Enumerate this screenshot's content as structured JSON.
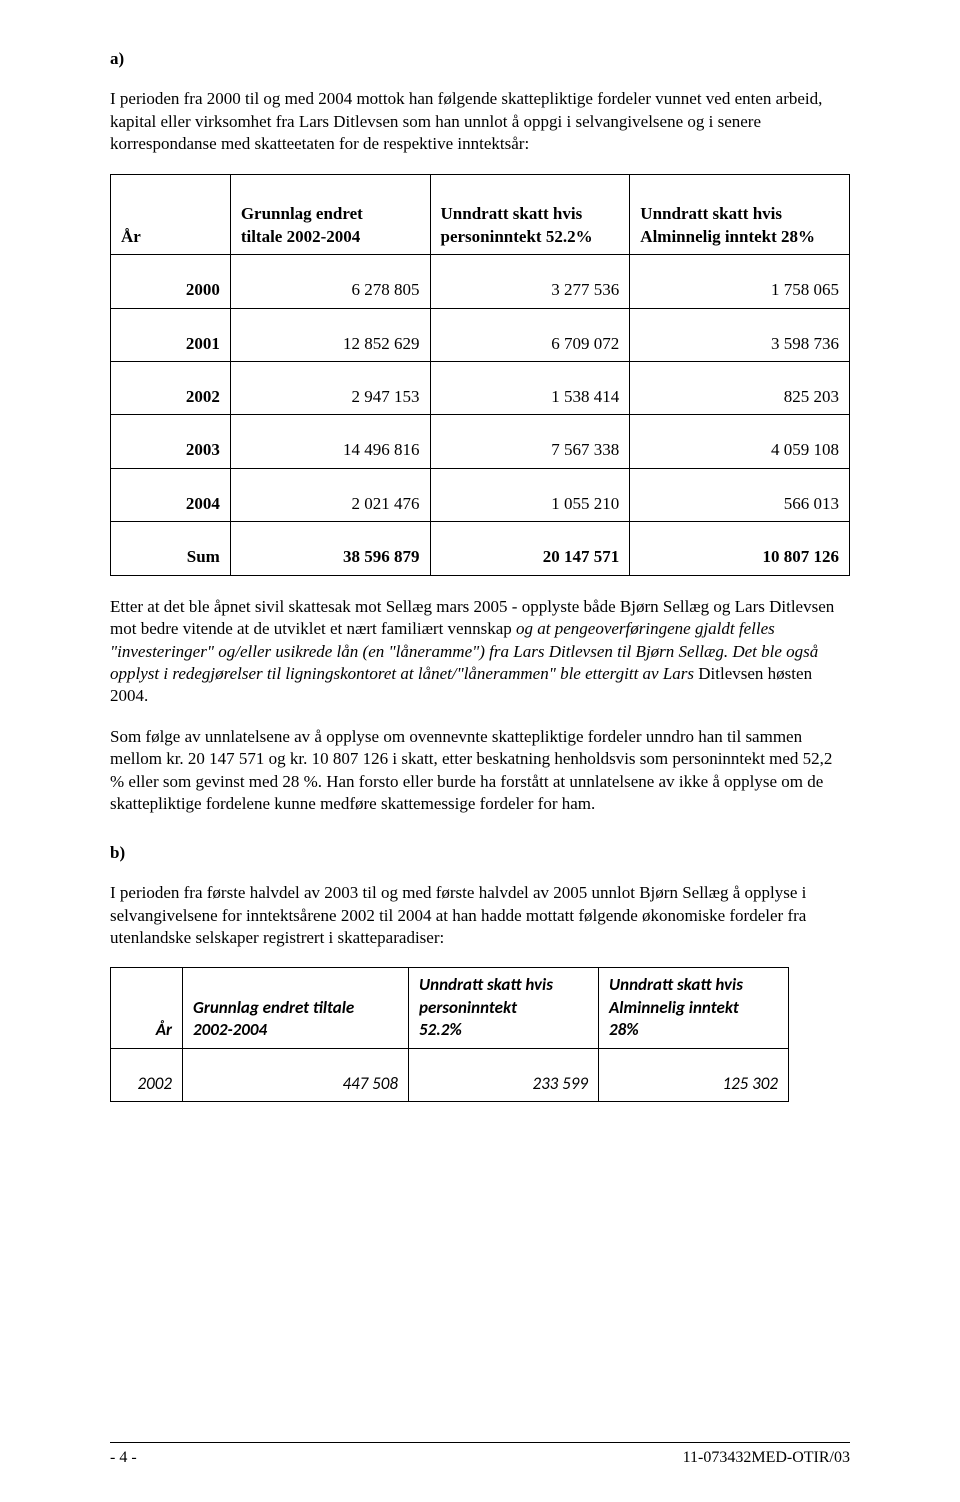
{
  "section_a": {
    "label": "a)",
    "para1": "I perioden fra 2000 til og med 2004 mottok han følgende skattepliktige fordeler vunnet ved enten arbeid, kapital eller virksomhet fra Lars Ditlevsen som han unnlot å oppgi i selvangivelsene og i senere korrespondanse med skatteetaten for de respektive inntektsår:"
  },
  "table1": {
    "headers": {
      "c1": "År",
      "c2_l1": "Grunnlag endret",
      "c2_l2": "tiltale 2002-2004",
      "c3_l1": "Unndratt skatt hvis",
      "c3_l2": "personinntekt 52.2%",
      "c4_l1": "Unndratt skatt hvis",
      "c4_l2": "Alminnelig inntekt 28%"
    },
    "rows": [
      {
        "year": "2000",
        "c2": "6 278 805",
        "c3": "3 277 536",
        "c4": "1 758 065"
      },
      {
        "year": "2001",
        "c2": "12 852 629",
        "c3": "6 709 072",
        "c4": "3 598 736"
      },
      {
        "year": "2002",
        "c2": "2 947 153",
        "c3": "1 538 414",
        "c4": "825 203"
      },
      {
        "year": "2003",
        "c2": "14 496 816",
        "c3": "7 567 338",
        "c4": "4 059 108"
      },
      {
        "year": "2004",
        "c2": "2 021 476",
        "c3": "1 055 210",
        "c4": "566 013"
      }
    ],
    "sum_row": {
      "label": "Sum",
      "c2": "38 596 879",
      "c3": "20 147 571",
      "c4": "10 807 126"
    },
    "col_widths": {
      "c1": 120,
      "c2": 200,
      "c3": 200,
      "c4": 220
    }
  },
  "body": {
    "p2_part1": "Etter at det ble åpnet sivil skattesak mot Sellæg mars 2005 - opplyste både Bjørn Sellæg og Lars Ditlevsen mot bedre vitende at de utviklet et nært familiært vennskap ",
    "p2_italic1": "og at pengeoverføringene gjaldt felles \"investeringer\" og/eller usikrede lån (en \"låneramme\") fra Lars Ditlevsen til Bjørn Sellæg. Det ble også opplyst i redegjørelser til ligningskontoret at lånet/\"lånerammen\" ble ettergitt av Lars ",
    "p2_part2": "Ditlevsen høsten 2004.",
    "p3": "Som følge av unnlatelsene av å opplyse om ovennevnte skattepliktige fordeler unndro han til sammen mellom kr. 20 147 571 og kr. 10 807 126 i skatt, etter beskatning henholdsvis som personinntekt med 52,2 % eller som gevinst med 28 %. Han forsto eller burde ha forstått at unnlatelsene av ikke å opplyse om de skattepliktige fordelene kunne medføre skattemessige fordeler for ham."
  },
  "section_b": {
    "label": "b)",
    "para": "I perioden fra første halvdel av 2003 til og med første halvdel av 2005 unnlot Bjørn Sellæg å opplyse i selvangivelsene for inntektsårene 2002 til 2004 at han hadde mottatt følgende økonomiske fordeler  fra utenlandske selskaper registrert i skatteparadiser:"
  },
  "table2": {
    "headers": {
      "c1": "År",
      "c2_l1": "Grunnlag endret tiltale",
      "c2_l2": "2002-2004",
      "c3_l1": "Unndratt skatt hvis",
      "c3_l2": "personinntekt",
      "c3_l3": "52.2%",
      "c4_l1": "Unndratt skatt hvis",
      "c4_l2": "Alminnelig inntekt",
      "c4_l3": "28%"
    },
    "rows": [
      {
        "year": "2002",
        "c2": "447 508",
        "c3": "233 599",
        "c4": "125 302"
      }
    ],
    "col_widths": {
      "c1": 72,
      "c2": 226,
      "c3": 190,
      "c4": 190
    }
  },
  "footer": {
    "left": "- 4 -",
    "right": "11-073432MED-OTIR/03"
  }
}
